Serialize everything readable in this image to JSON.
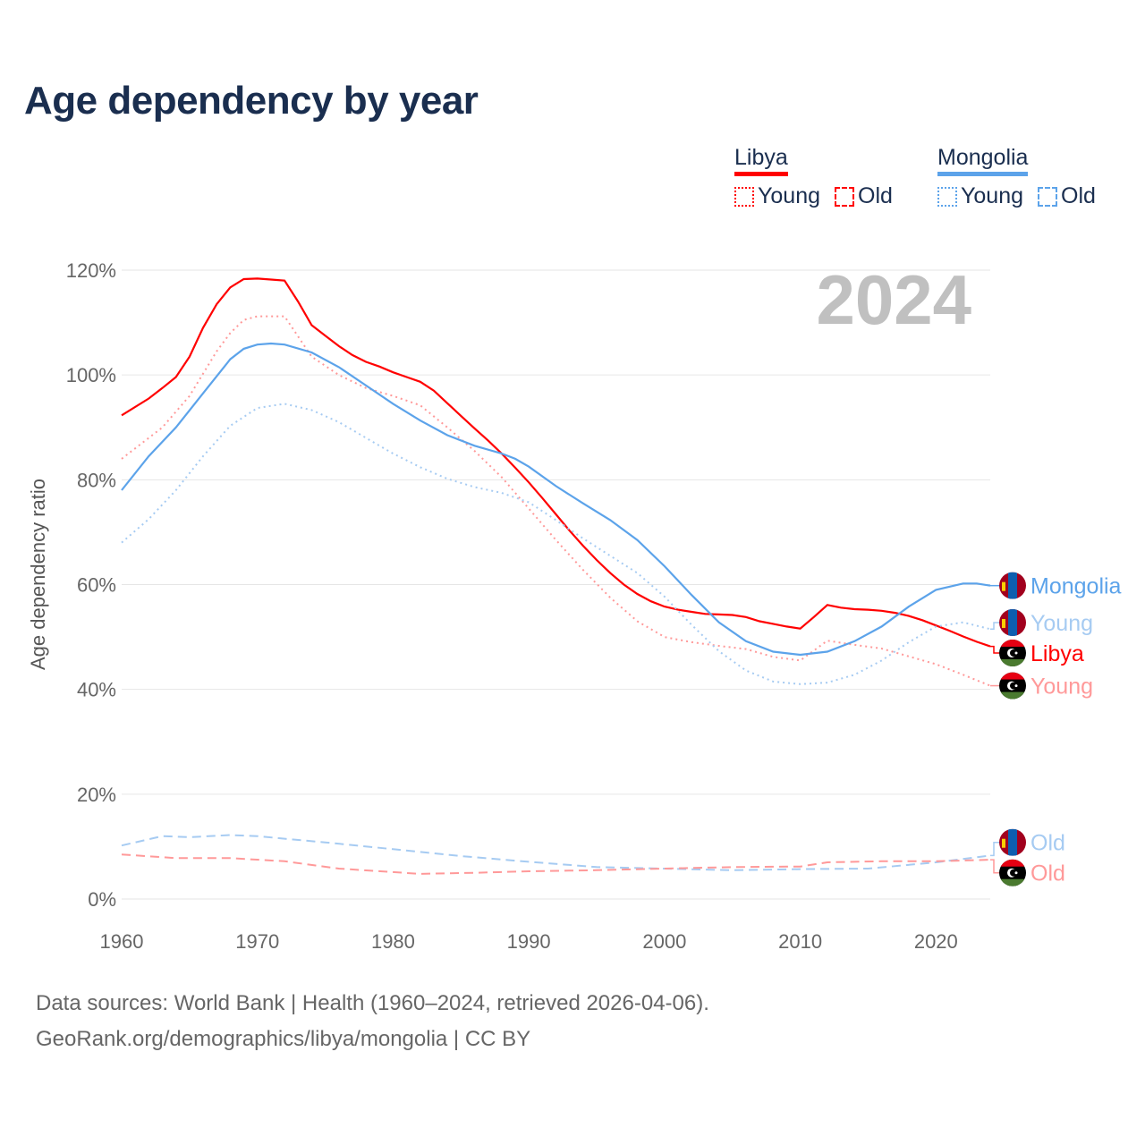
{
  "title": "Age dependency by year",
  "legend": [
    {
      "name": "Libya",
      "color": "#ff0000",
      "light": "#ff9999",
      "items": [
        "Young",
        "Old"
      ]
    },
    {
      "name": "Mongolia",
      "color": "#5ca3ea",
      "light": "#a6cbf2",
      "items": [
        "Young",
        "Old"
      ]
    }
  ],
  "year_label": "2024",
  "footer": {
    "source": "Data sources: World Bank | Health (1960–2024, retrieved 2026-04-06).",
    "credit": "GeoRank.org/demographics/libya/mongolia | CC BY"
  },
  "chart_data": {
    "type": "line",
    "title": "Age dependency by year",
    "xlabel": "",
    "ylabel": "Age dependency ratio",
    "xlim": [
      1960,
      2024
    ],
    "ylim": [
      0,
      120
    ],
    "xticks": [
      1960,
      1970,
      1980,
      1990,
      2000,
      2010,
      2020
    ],
    "yticks": [
      0,
      20,
      40,
      60,
      80,
      100,
      120
    ],
    "ytick_labels": [
      "0%",
      "20%",
      "40%",
      "60%",
      "80%",
      "100%",
      "120%"
    ],
    "grid": true,
    "legend_position": "top-right",
    "series": [
      {
        "name": "Libya",
        "label": "Libya",
        "country": "libya",
        "style": "solid",
        "color": "#ff0000",
        "x": [
          1960,
          1962,
          1963,
          1964,
          1965,
          1966,
          1967,
          1968,
          1969,
          1970,
          1971,
          1972,
          1973,
          1974,
          1975,
          1976,
          1977,
          1978,
          1979,
          1980,
          1981,
          1982,
          1983,
          1984,
          1985,
          1986,
          1987,
          1988,
          1989,
          1990,
          1991,
          1992,
          1993,
          1994,
          1995,
          1996,
          1997,
          1998,
          1999,
          2000,
          2001,
          2002,
          2003,
          2004,
          2005,
          2006,
          2007,
          2008,
          2009,
          2010,
          2011,
          2012,
          2013,
          2014,
          2015,
          2016,
          2017,
          2018,
          2019,
          2020,
          2021,
          2022,
          2023,
          2024
        ],
        "y": [
          92.3,
          95.5,
          97.5,
          99.6,
          103.5,
          109,
          113.5,
          116.7,
          118.3,
          118.4,
          118.2,
          118,
          114,
          109.5,
          107.5,
          105.5,
          103.8,
          102.5,
          101.6,
          100.5,
          99.6,
          98.7,
          97,
          94.6,
          92.2,
          89.8,
          87.5,
          85,
          82.3,
          79.5,
          76.5,
          73.4,
          70.3,
          67.4,
          64.7,
          62.2,
          60,
          58.2,
          56.8,
          55.8,
          55.2,
          54.8,
          54.4,
          54.3,
          54.2,
          53.8,
          53,
          52.5,
          52,
          51.6,
          53.8,
          56.1,
          55.6,
          55.3,
          55.2,
          55,
          54.6,
          54,
          53.2,
          52.2,
          51.2,
          50.1,
          49.1,
          48.2
        ]
      },
      {
        "name": "Libya Young",
        "label": "Young",
        "country": "libya",
        "style": "dotted",
        "color": "#ff9999",
        "x": [
          1960,
          1963,
          1965,
          1967,
          1968,
          1969,
          1970,
          1972,
          1974,
          1976,
          1978,
          1980,
          1982,
          1984,
          1986,
          1988,
          1990,
          1992,
          1994,
          1996,
          1998,
          2000,
          2002,
          2004,
          2006,
          2008,
          2010,
          2012,
          2014,
          2016,
          2018,
          2020,
          2022,
          2024
        ],
        "y": [
          84,
          90,
          96,
          104.5,
          108,
          110.5,
          111.2,
          111.2,
          103.5,
          100,
          97.5,
          96,
          94.2,
          90,
          85.5,
          80.5,
          74.5,
          68.5,
          62.8,
          57.5,
          53,
          50,
          49,
          48.3,
          47.7,
          46.2,
          45.5,
          49.3,
          48.5,
          47.8,
          46.3,
          44.8,
          42.8,
          40.7
        ]
      },
      {
        "name": "Mongolia",
        "label": "Mongolia",
        "country": "mongolia",
        "style": "solid",
        "color": "#5ca3ea",
        "x": [
          1960,
          1962,
          1964,
          1966,
          1968,
          1969,
          1970,
          1971,
          1972,
          1974,
          1976,
          1978,
          1980,
          1982,
          1984,
          1986,
          1988,
          1989,
          1990,
          1992,
          1994,
          1996,
          1998,
          2000,
          2002,
          2004,
          2006,
          2008,
          2010,
          2012,
          2014,
          2016,
          2018,
          2020,
          2022,
          2023,
          2024
        ],
        "y": [
          78,
          84.5,
          90,
          96.5,
          103,
          105,
          105.8,
          106,
          105.8,
          104.3,
          101.5,
          98,
          94.5,
          91.3,
          88.5,
          86.5,
          85,
          84,
          82.5,
          78.8,
          75.5,
          72.3,
          68.5,
          63.5,
          58,
          52.8,
          49.2,
          47.2,
          46.6,
          47.2,
          49.2,
          52,
          55.8,
          59,
          60.2,
          60.2,
          59.8
        ]
      },
      {
        "name": "Mongolia Young",
        "label": "Young",
        "country": "mongolia",
        "style": "dotted",
        "color": "#a6cbf2",
        "x": [
          1960,
          1962,
          1964,
          1966,
          1968,
          1970,
          1972,
          1974,
          1976,
          1978,
          1980,
          1982,
          1984,
          1986,
          1988,
          1990,
          1992,
          1994,
          1996,
          1998,
          2000,
          2002,
          2004,
          2006,
          2008,
          2010,
          2012,
          2014,
          2016,
          2018,
          2020,
          2022,
          2024
        ],
        "y": [
          68,
          72.5,
          78,
          84.5,
          90.3,
          93.7,
          94.5,
          93.3,
          91,
          88,
          85,
          82.4,
          80.2,
          78.6,
          77.5,
          75.7,
          72.3,
          68.8,
          65.5,
          62.2,
          57.7,
          52.3,
          47.3,
          43.6,
          41.5,
          41,
          41.3,
          42.8,
          45.5,
          49,
          52,
          52.8,
          51.5
        ]
      },
      {
        "name": "Mongolia Old",
        "label": "Old",
        "country": "mongolia",
        "style": "dashed",
        "color": "#a6cbf2",
        "x": [
          1960,
          1963,
          1965,
          1968,
          1970,
          1972,
          1975,
          1980,
          1985,
          1990,
          1995,
          2000,
          2005,
          2010,
          2015,
          2020,
          2024
        ],
        "y": [
          10.2,
          12,
          11.8,
          12.2,
          12,
          11.5,
          10.8,
          9.5,
          8.2,
          7.1,
          6.1,
          5.8,
          5.5,
          5.7,
          5.8,
          7,
          8.3
        ]
      },
      {
        "name": "Libya Old",
        "label": "Old",
        "country": "libya",
        "style": "dashed",
        "color": "#ff9999",
        "x": [
          1960,
          1964,
          1968,
          1972,
          1976,
          1982,
          1986,
          1990,
          1995,
          2000,
          2005,
          2010,
          2012,
          2016,
          2020,
          2024
        ],
        "y": [
          8.5,
          7.8,
          7.8,
          7.2,
          5.8,
          4.8,
          5,
          5.3,
          5.5,
          5.8,
          6.1,
          6.2,
          7,
          7.2,
          7.2,
          7.5
        ]
      }
    ]
  }
}
